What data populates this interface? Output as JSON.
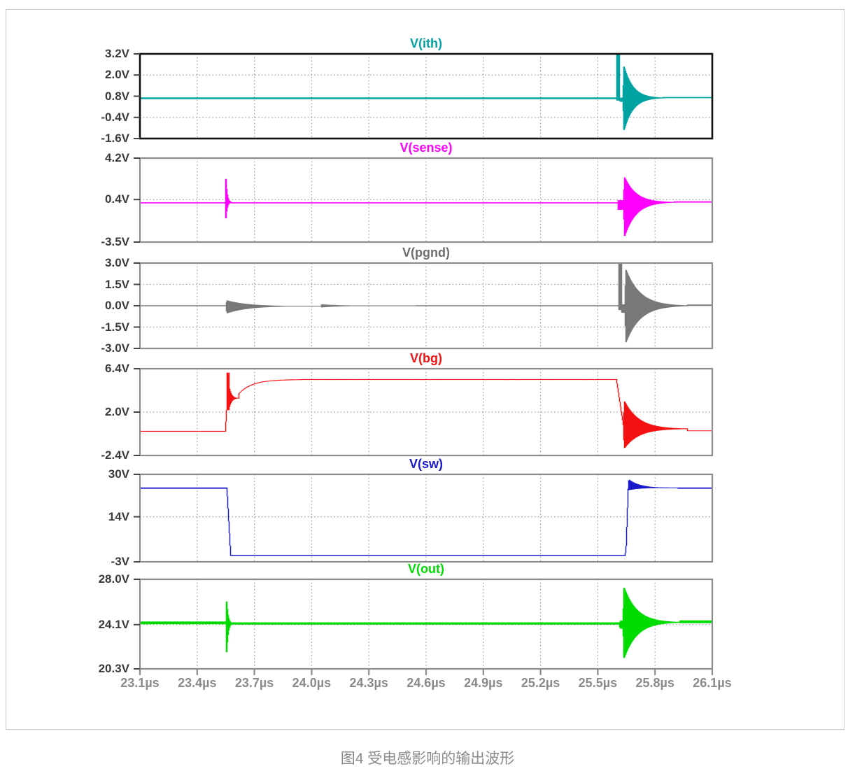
{
  "caption": "图4 受电感影响的输出波形",
  "chart_data": {
    "type": "line",
    "title": "",
    "legend_position": "none",
    "x": {
      "unit": "µs",
      "min": 23.1,
      "max": 26.1,
      "tick_step": 0.3,
      "tick_labels": [
        "23.1µs",
        "23.4µs",
        "23.7µs",
        "24.0µs",
        "24.3µs",
        "24.6µs",
        "24.9µs",
        "25.2µs",
        "25.5µs",
        "25.8µs",
        "26.1µs"
      ]
    },
    "grid": {
      "color": "#9A9A9A",
      "style": "dotted"
    },
    "events": {
      "first_transient_us": 23.56,
      "second_transient_us": 25.62
    },
    "panels": [
      {
        "name": "vith",
        "title": "V(ith)",
        "color": "#00A2A2",
        "title_color": "#00A2A2",
        "border": "#111111",
        "border_width": 2.6,
        "ylim": [
          -1.6,
          3.2
        ],
        "yticks": [
          {
            "v": 3.2,
            "label": "3.2V"
          },
          {
            "v": 2.0,
            "label": "2.0V",
            "grid": true
          },
          {
            "v": 0.8,
            "label": "0.8V"
          },
          {
            "v": -0.4,
            "label": "-0.4V",
            "grid": true
          },
          {
            "v": -1.6,
            "label": "-1.6V"
          }
        ],
        "segments": [
          {
            "type": "flat",
            "t0": 23.1,
            "t1": 25.6,
            "v": 0.68,
            "n": 0.05
          },
          {
            "type": "spike",
            "t0": 25.6,
            "t1": 25.615,
            "lo": 0.55,
            "hi": 3.2
          },
          {
            "type": "flat",
            "t0": 25.615,
            "t1": 25.632,
            "v": 0.6,
            "n": 0.12
          },
          {
            "type": "ring",
            "t0": 25.632,
            "t1": 25.84,
            "v": 0.7,
            "up": 2.05,
            "dn": 2.1,
            "atk": 0.006
          },
          {
            "type": "flat",
            "t0": 25.84,
            "t1": 26.1,
            "v": 0.72,
            "n": 0.035
          }
        ]
      },
      {
        "name": "vsense",
        "title": "V(sense)",
        "color": "#FF00FF",
        "title_color": "#FF00FF",
        "border": "#8C8C8C",
        "border_width": 2.2,
        "ylim": [
          -3.5,
          4.2
        ],
        "yticks": [
          {
            "v": 4.2,
            "label": "4.2V"
          },
          {
            "v": 0.4,
            "label": "0.4V",
            "grid": true
          },
          {
            "v": -3.5,
            "label": "-3.5V"
          }
        ],
        "segments": [
          {
            "type": "flat",
            "t0": 23.1,
            "t1": 23.548,
            "v": 0.1,
            "n": 0.05
          },
          {
            "type": "ring",
            "t0": 23.548,
            "t1": 23.578,
            "v": 0.15,
            "up": 3.4,
            "dn": 2.35,
            "atk": 0.003
          },
          {
            "type": "flat",
            "t0": 23.578,
            "t1": 25.605,
            "v": 0.1,
            "n": 0.05
          },
          {
            "type": "flat",
            "t0": 25.605,
            "t1": 25.635,
            "v": -0.1,
            "n": 0.45
          },
          {
            "type": "ring",
            "t0": 25.635,
            "t1": 25.9,
            "v": 0.15,
            "up": 2.55,
            "dn": 3.45,
            "atk": 0.006
          },
          {
            "type": "flat",
            "t0": 25.9,
            "t1": 26.1,
            "v": 0.18,
            "n": 0.06
          }
        ]
      },
      {
        "name": "vpgnd",
        "title": "V(pgnd)",
        "color": "#787878",
        "title_color": "#6E6E6E",
        "border": "#8C8C8C",
        "border_width": 2.2,
        "ylim": [
          -3.0,
          3.0
        ],
        "yticks": [
          {
            "v": 3.0,
            "label": "3.0V"
          },
          {
            "v": 1.5,
            "label": "1.5V",
            "grid": true
          },
          {
            "v": 0.0,
            "label": "0.0V"
          },
          {
            "v": -1.5,
            "label": "-1.5V",
            "grid": true
          },
          {
            "v": -3.0,
            "label": "-3.0V"
          }
        ],
        "segments": [
          {
            "type": "flat",
            "t0": 23.1,
            "t1": 23.552,
            "v": 0.0,
            "n": 0.04
          },
          {
            "type": "ring",
            "t0": 23.552,
            "t1": 24.05,
            "v": -0.03,
            "up": 0.42,
            "dn": 0.52,
            "atk": 0.004
          },
          {
            "type": "ring",
            "t0": 24.05,
            "t1": 24.55,
            "v": 0.0,
            "up": 0.1,
            "dn": 0.12,
            "atk": 0.001
          },
          {
            "type": "flat",
            "t0": 24.55,
            "t1": 25.612,
            "v": 0.0,
            "n": 0.035
          },
          {
            "type": "spike",
            "t0": 25.612,
            "t1": 25.625,
            "lo": -0.3,
            "hi": 3.0
          },
          {
            "type": "flat",
            "t0": 25.625,
            "t1": 25.642,
            "v": -0.2,
            "n": 0.3
          },
          {
            "type": "ring",
            "t0": 25.642,
            "t1": 25.97,
            "v": 0.0,
            "up": 2.75,
            "dn": 2.8,
            "atk": 0.006
          },
          {
            "type": "flat",
            "t0": 25.97,
            "t1": 26.1,
            "v": 0.04,
            "n": 0.05
          }
        ]
      },
      {
        "name": "vbg",
        "title": "V(bg)",
        "color": "#F51111",
        "title_color": "#F51111",
        "border": "#8C8C8C",
        "border_width": 2.2,
        "ylim": [
          -2.4,
          6.4
        ],
        "yticks": [
          {
            "v": 6.4,
            "label": "6.4V"
          },
          {
            "v": 2.0,
            "label": "2.0V",
            "grid": true
          },
          {
            "v": -2.4,
            "label": "-2.4V"
          }
        ],
        "segments": [
          {
            "type": "flat",
            "t0": 23.1,
            "t1": 23.548,
            "v": 0.05,
            "n": 0.03
          },
          {
            "type": "ramp",
            "t0": 23.548,
            "t1": 23.556,
            "v0": 0.05,
            "v1": 2.6
          },
          {
            "type": "spike",
            "t0": 23.556,
            "t1": 23.566,
            "lo": 2.2,
            "hi": 6.0
          },
          {
            "type": "ring",
            "t0": 23.566,
            "t1": 23.62,
            "v": 3.4,
            "up": 1.3,
            "dn": 1.15,
            "atk": 0.002
          },
          {
            "type": "expo",
            "t0": 23.62,
            "t1": 23.95,
            "v0": 3.9,
            "v1": 5.3,
            "tau": 0.07
          },
          {
            "type": "flat",
            "t0": 23.95,
            "t1": 25.598,
            "v": 5.3,
            "n": 0.03
          },
          {
            "type": "ramp",
            "t0": 25.598,
            "t1": 25.635,
            "v0": 5.3,
            "v1": 0.6
          },
          {
            "type": "ring",
            "t0": 25.635,
            "t1": 25.97,
            "v": 0.3,
            "up": 3.0,
            "dn": 2.1,
            "atk": 0.005
          },
          {
            "type": "flat",
            "t0": 25.97,
            "t1": 26.1,
            "v": 0.1,
            "n": 0.03
          }
        ]
      },
      {
        "name": "vsw",
        "title": "V(sw)",
        "color": "#1A1ACC",
        "title_color": "#1A1ACC",
        "border": "#8C8C8C",
        "border_width": 2.2,
        "ylim": [
          -3,
          30
        ],
        "yticks": [
          {
            "v": 30,
            "label": "30V"
          },
          {
            "v": 14,
            "label": "14V",
            "grid": true
          },
          {
            "v": -3,
            "label": "-3V"
          }
        ],
        "segments": [
          {
            "type": "flat",
            "t0": 23.1,
            "t1": 23.556,
            "v": 24.8,
            "n": 0.25
          },
          {
            "type": "ramp",
            "t0": 23.556,
            "t1": 23.576,
            "v0": 24.8,
            "v1": -0.6
          },
          {
            "type": "flat",
            "t0": 23.576,
            "t1": 25.642,
            "v": -0.6,
            "n": 0.2
          },
          {
            "type": "ramp",
            "t0": 25.642,
            "t1": 25.648,
            "v0": -0.6,
            "v1": 1.2
          },
          {
            "type": "ramp",
            "t0": 25.648,
            "t1": 25.66,
            "v0": 1.2,
            "v1": 24.8
          },
          {
            "type": "ring",
            "t0": 25.66,
            "t1": 25.92,
            "v": 24.9,
            "up": 3.3,
            "dn": 0.9,
            "atk": 0.004
          },
          {
            "type": "flat",
            "t0": 25.92,
            "t1": 26.1,
            "v": 24.8,
            "n": 0.25
          }
        ]
      },
      {
        "name": "vout",
        "title": "V(out)",
        "color": "#00DC00",
        "title_color": "#00DC00",
        "border": "#8C8C8C",
        "border_width": 2.2,
        "ylim": [
          20.3,
          28.0
        ],
        "yticks": [
          {
            "v": 28.0,
            "label": "28.0V"
          },
          {
            "v": 24.1,
            "label": "24.1V",
            "grid": true
          },
          {
            "v": 20.3,
            "label": "20.3V"
          }
        ],
        "segments": [
          {
            "type": "flat",
            "t0": 23.1,
            "t1": 23.552,
            "v": 24.25,
            "n": 0.12
          },
          {
            "type": "ring",
            "t0": 23.552,
            "t1": 23.585,
            "v": 24.2,
            "up": 3.0,
            "dn": 3.9,
            "atk": 0.003
          },
          {
            "type": "flat",
            "t0": 23.585,
            "t1": 25.615,
            "v": 24.2,
            "n": 0.1
          },
          {
            "type": "flat",
            "t0": 25.615,
            "t1": 25.632,
            "v": 24.1,
            "n": 0.35
          },
          {
            "type": "ring",
            "t0": 25.632,
            "t1": 25.93,
            "v": 24.3,
            "up": 3.3,
            "dn": 3.4,
            "atk": 0.006
          },
          {
            "type": "flat",
            "t0": 25.93,
            "t1": 26.1,
            "v": 24.35,
            "n": 0.12
          }
        ]
      }
    ]
  }
}
